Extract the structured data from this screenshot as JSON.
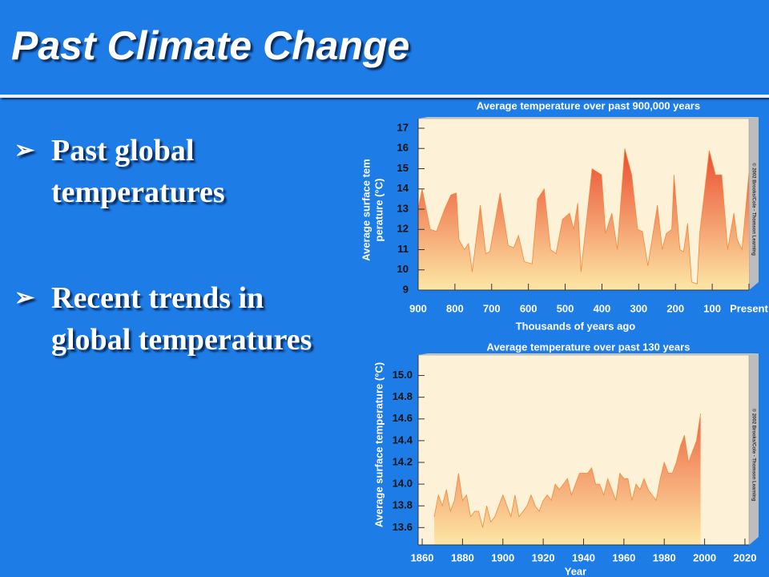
{
  "header": {
    "title": "Past Climate Change"
  },
  "bullets": [
    [
      "Past global",
      "temperatures"
    ],
    [
      "Recent trends in",
      "global temperatures"
    ]
  ],
  "chart_data": [
    {
      "type": "area",
      "title": "Average temperature over past 900,000 years",
      "xlabel": "Thousands of years ago",
      "ylabel": [
        "Average surface tem",
        "perature (°C)"
      ],
      "credit": "© 2002 Brooks/Cole - Thomson Learning",
      "xlim": [
        900,
        0
      ],
      "ylim": [
        9,
        17
      ],
      "xticks": [
        900,
        800,
        700,
        600,
        500,
        400,
        300,
        200,
        100,
        {
          "value": 0,
          "label": "Present"
        }
      ],
      "yticks": [
        9,
        10,
        11,
        12,
        13,
        14,
        15,
        16,
        17
      ],
      "color": "#ef8a3a",
      "fill_gradient": [
        "#e8351e",
        "#fde7a6"
      ],
      "x": [
        900,
        889,
        867,
        850,
        828,
        811,
        796,
        789,
        774,
        763,
        753,
        731,
        716,
        705,
        677,
        655,
        640,
        627,
        611,
        590,
        575,
        557,
        540,
        525,
        507,
        488,
        477,
        466,
        457,
        427,
        401,
        390,
        373,
        358,
        338,
        319,
        303,
        290,
        275,
        249,
        236,
        225,
        210,
        204,
        188,
        178,
        167,
        156,
        141,
        134,
        108,
        91,
        74,
        58,
        41,
        32,
        19,
        0
      ],
      "values": [
        13.0,
        14.0,
        12.0,
        11.9,
        13.0,
        13.7,
        13.8,
        11.5,
        11.0,
        11.3,
        9.9,
        13.2,
        10.8,
        10.9,
        13.8,
        11.2,
        11.1,
        11.7,
        10.4,
        10.3,
        13.5,
        14.0,
        11.0,
        10.8,
        12.5,
        12.8,
        12.0,
        13.3,
        9.9,
        15.0,
        14.7,
        11.8,
        12.8,
        11.0,
        16.0,
        14.7,
        12.0,
        11.9,
        10.2,
        13.2,
        11.0,
        11.8,
        12.0,
        14.7,
        11.0,
        10.9,
        12.3,
        9.4,
        9.3,
        11.8,
        15.9,
        14.7,
        14.7,
        11.0,
        12.8,
        11.5,
        11.0,
        14.8
      ]
    },
    {
      "type": "area",
      "title": "Average temperature over past 130 years",
      "xlabel": "Year",
      "ylabel": [
        "Average surface temperature (°C)"
      ],
      "credit": "© 2002 Brooks/Cole - Thomson Learning",
      "xlim": [
        1858,
        2022
      ],
      "ylim": [
        13.44,
        15.1
      ],
      "xticks": [
        1860,
        1880,
        1900,
        1920,
        1940,
        1960,
        1980,
        2000,
        2020
      ],
      "yticks": [
        13.6,
        13.8,
        {
          "value": 14,
          "label": "14.0"
        },
        14.2,
        14.4,
        14.6,
        14.8,
        {
          "value": 15,
          "label": "15.0"
        }
      ],
      "color": "#ef8a3a",
      "fill_gradient": [
        "#e8351e",
        "#fde7a6"
      ],
      "x": [
        1866,
        1868,
        1870,
        1872,
        1874,
        1876,
        1878,
        1880,
        1882,
        1884,
        1886,
        1888,
        1890,
        1892,
        1894,
        1896,
        1898,
        1900,
        1902,
        1904,
        1906,
        1908,
        1910,
        1912,
        1914,
        1916,
        1918,
        1920,
        1922,
        1924,
        1926,
        1928,
        1930,
        1932,
        1934,
        1936,
        1938,
        1940,
        1942,
        1944,
        1946,
        1948,
        1950,
        1952,
        1954,
        1956,
        1958,
        1960,
        1962,
        1964,
        1966,
        1968,
        1970,
        1972,
        1974,
        1976,
        1978,
        1980,
        1982,
        1984,
        1986,
        1988,
        1990,
        1992,
        1994,
        1996,
        1998
      ],
      "values": [
        13.7,
        13.9,
        13.8,
        13.95,
        13.75,
        13.85,
        14.1,
        13.85,
        13.9,
        13.7,
        13.75,
        13.75,
        13.6,
        13.8,
        13.65,
        13.7,
        13.8,
        13.9,
        13.8,
        13.7,
        13.9,
        13.7,
        13.75,
        13.8,
        13.9,
        13.8,
        13.75,
        13.85,
        13.9,
        13.85,
        14.0,
        13.95,
        14.0,
        14.05,
        13.9,
        14.0,
        14.1,
        14.1,
        14.1,
        14.15,
        14.0,
        14.0,
        13.9,
        14.05,
        13.95,
        13.85,
        14.1,
        14.05,
        14.05,
        13.85,
        14.0,
        13.95,
        14.05,
        13.95,
        13.9,
        13.85,
        14.05,
        14.2,
        14.1,
        14.1,
        14.2,
        14.35,
        14.45,
        14.2,
        14.3,
        14.4,
        14.65
      ]
    }
  ]
}
